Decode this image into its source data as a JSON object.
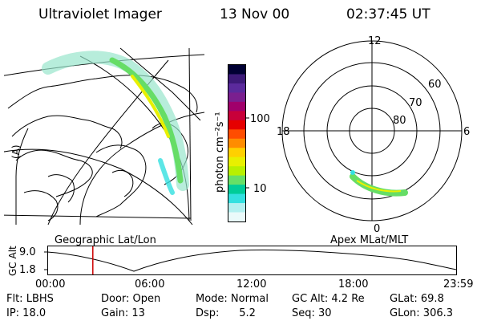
{
  "header": {
    "instrument": "Ultraviolet Imager",
    "date": "13 Nov 00",
    "time": "02:37:45 UT"
  },
  "geo_panel": {
    "caption": "Geographic Lat/Lon",
    "side_label": "(A)"
  },
  "colorbar": {
    "label": "photon cm⁻²s⁻¹",
    "ticks": [
      "100",
      "10"
    ],
    "scale": "log",
    "colors": [
      "#000033",
      "#3d1a78",
      "#5b2a9c",
      "#7a1f8f",
      "#a0006b",
      "#c8003a",
      "#e60000",
      "#ff4d00",
      "#ff8c00",
      "#ffd000",
      "#e8f000",
      "#b8f000",
      "#66e066",
      "#00cc99",
      "#33e0e0",
      "#b3f0f0",
      "#eafafa"
    ]
  },
  "polar_panel": {
    "caption": "Apex MLat/MLT",
    "mlt_labels": {
      "top": "12",
      "left": "18",
      "right": "6",
      "bottom": "0"
    },
    "mlat_labels": [
      "60",
      "70",
      "80"
    ]
  },
  "timeline": {
    "ylabel": "GC Alt",
    "y_ticks": [
      "9.0",
      "1.8"
    ],
    "x_ticks": [
      "00:00",
      "06:00",
      "12:00",
      "18:00",
      "23:59"
    ],
    "marker_time": "02:37:45"
  },
  "footer": {
    "row1": {
      "flt": "Flt: LBHS",
      "door": "Door: Open",
      "mode": "Mode: Normal",
      "gcalt": "GC Alt: 4.2 Re",
      "glat": "GLat:  69.8"
    },
    "row2": {
      "ip": "IP: 18.0",
      "gain": "Gain: 13",
      "dsp": "Dsp:      5.2",
      "seq": "Seq: 30",
      "glon": "GLon: 306.3"
    }
  },
  "colors": {
    "marker": "#cc0000",
    "text": "#000000"
  }
}
